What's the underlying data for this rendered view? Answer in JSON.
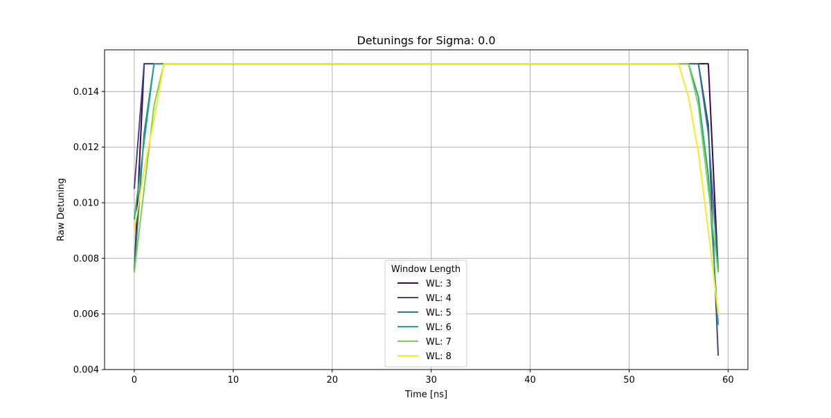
{
  "chart_data": {
    "type": "line",
    "title": "Detunings for Sigma: 0.0",
    "xlabel": "Time [ns]",
    "ylabel": "Raw Detuning",
    "xlim": [
      -3,
      62
    ],
    "ylim": [
      0.004,
      0.0155
    ],
    "x_ticks": [
      0,
      10,
      20,
      30,
      40,
      50,
      60
    ],
    "y_ticks": [
      0.004,
      0.006,
      0.008,
      0.01,
      0.012,
      0.014
    ],
    "x_tick_labels": [
      "0",
      "10",
      "20",
      "30",
      "40",
      "50",
      "60"
    ],
    "y_tick_labels": [
      "0.004",
      "0.006",
      "0.008",
      "0.010",
      "0.012",
      "0.014"
    ],
    "grid": true,
    "legend": {
      "title": "Window Length",
      "placement": "lower-center"
    },
    "series": [
      {
        "name": "WL: 3",
        "color": "#440154",
        "points": [
          [
            0,
            0.0075
          ],
          [
            1,
            0.015
          ],
          [
            58,
            0.015
          ],
          [
            59,
            0.0075
          ]
        ]
      },
      {
        "name": "WL: 4",
        "color": "#414487",
        "points": [
          [
            0,
            0.0105
          ],
          [
            1,
            0.015
          ],
          [
            57,
            0.015
          ],
          [
            58,
            0.0128
          ],
          [
            59,
            0.0045
          ]
        ]
      },
      {
        "name": "WL: 5",
        "color": "#2a788e",
        "points": [
          [
            0,
            0.0076
          ],
          [
            1,
            0.0125
          ],
          [
            2,
            0.015
          ],
          [
            57,
            0.015
          ],
          [
            58,
            0.0125
          ],
          [
            59,
            0.0076
          ]
        ]
      },
      {
        "name": "WL: 6",
        "color": "#22a884",
        "points": [
          [
            0,
            0.0094
          ],
          [
            1,
            0.0122
          ],
          [
            2,
            0.015
          ],
          [
            56,
            0.015
          ],
          [
            57,
            0.0138
          ],
          [
            58,
            0.011
          ],
          [
            59,
            0.0056
          ]
        ]
      },
      {
        "name": "WL: 7",
        "color": "#7ad151",
        "points": [
          [
            0,
            0.0075
          ],
          [
            1,
            0.0105
          ],
          [
            2,
            0.0135
          ],
          [
            3,
            0.015
          ],
          [
            56,
            0.015
          ],
          [
            57,
            0.0135
          ],
          [
            58,
            0.0105
          ],
          [
            59,
            0.0075
          ]
        ]
      },
      {
        "name": "WL: 8",
        "color": "#fde725",
        "points": [
          [
            0,
            0.009
          ],
          [
            1,
            0.0112
          ],
          [
            2,
            0.013
          ],
          [
            3,
            0.015
          ],
          [
            55,
            0.015
          ],
          [
            56,
            0.0138
          ],
          [
            57,
            0.0118
          ],
          [
            58,
            0.009
          ],
          [
            59,
            0.006
          ]
        ]
      }
    ]
  }
}
